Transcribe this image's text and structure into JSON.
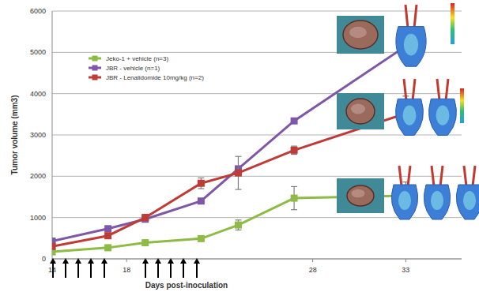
{
  "chart_data": {
    "type": "line",
    "x_label": "Days post-inoculation",
    "y_label": "Tumor volume (mm3)",
    "x": [
      14,
      17,
      19,
      22,
      24,
      27,
      33
    ],
    "xlim": [
      14,
      36
    ],
    "xticks": [
      14,
      18,
      28,
      33
    ],
    "ylim": [
      0,
      6000
    ],
    "yticks": [
      0,
      1000,
      2000,
      3000,
      4000,
      5000,
      6000
    ],
    "grid": true,
    "legend": "upper-left",
    "series": [
      {
        "name": "Jeko-1 + vehicle (n=3)",
        "color": "#8dbb45",
        "marker": "square",
        "values": [
          170,
          270,
          390,
          490,
          820,
          1470,
          1530
        ],
        "errors": [
          20,
          40,
          50,
          40,
          120,
          280,
          330
        ]
      },
      {
        "name": "JBR - vehicle (n=1)",
        "color": "#7e57a8",
        "marker": "square",
        "values": [
          430,
          730,
          960,
          1400,
          2180,
          3340,
          5150
        ]
      },
      {
        "name": "JBR - Lenalidomide 10mg/kg (n=2)",
        "color": "#bf3b37",
        "marker": "square",
        "values": [
          300,
          560,
          1000,
          1830,
          2080,
          2630,
          3520
        ],
        "errors": [
          20,
          60,
          80,
          130,
          400,
          100,
          420
        ]
      }
    ]
  }
}
